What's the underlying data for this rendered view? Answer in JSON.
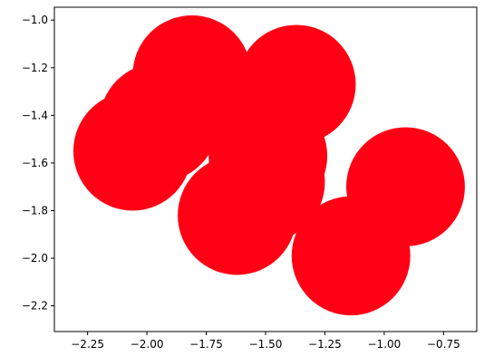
{
  "chart_data": {
    "type": "scatter",
    "title": "",
    "xlabel": "",
    "ylabel": "",
    "xlim": [
      -2.39,
      -0.61
    ],
    "ylim": [
      -2.308,
      -0.946
    ],
    "grid": false,
    "legend": "none",
    "marker_color": "#ff0015",
    "marker_radius": 0.25,
    "x_ticks": [
      {
        "value": -2.25,
        "label": "−2.25"
      },
      {
        "value": -2.0,
        "label": "−2.00"
      },
      {
        "value": -1.75,
        "label": "−1.75"
      },
      {
        "value": -1.5,
        "label": "−1.50"
      },
      {
        "value": -1.25,
        "label": "−1.25"
      },
      {
        "value": -1.0,
        "label": "−1.00"
      },
      {
        "value": -0.75,
        "label": "−0.75"
      }
    ],
    "y_ticks": [
      {
        "value": -2.2,
        "label": "−2.2"
      },
      {
        "value": -2.0,
        "label": "−2.0"
      },
      {
        "value": -1.8,
        "label": "−1.8"
      },
      {
        "value": -1.6,
        "label": "−1.6"
      },
      {
        "value": -1.4,
        "label": "−1.4"
      },
      {
        "value": -1.2,
        "label": "−1.2"
      },
      {
        "value": -1.0,
        "label": "−1.0"
      }
    ],
    "points": [
      {
        "x": -1.81,
        "y": -1.23
      },
      {
        "x": -1.37,
        "y": -1.27
      },
      {
        "x": -1.95,
        "y": -1.43
      },
      {
        "x": -2.06,
        "y": -1.55
      },
      {
        "x": -1.49,
        "y": -1.57
      },
      {
        "x": -1.5,
        "y": -1.68
      },
      {
        "x": -1.62,
        "y": -1.82
      },
      {
        "x": -0.91,
        "y": -1.7
      },
      {
        "x": -1.14,
        "y": -1.99
      }
    ]
  }
}
